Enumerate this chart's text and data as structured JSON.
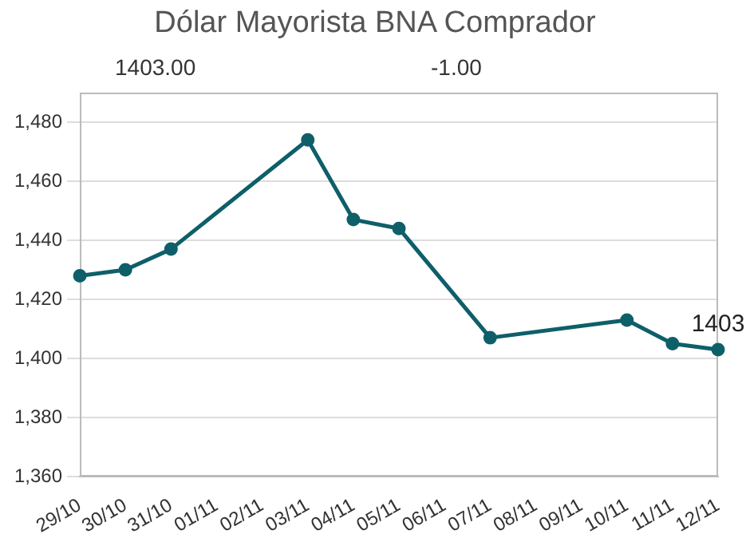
{
  "chart_data": {
    "type": "line",
    "title": "Dólar Mayorista BNA Comprador",
    "annotations": [
      "1403.00",
      "-1.00"
    ],
    "x": [
      "--10-29",
      "--10-30",
      "--10-31",
      "--11-03",
      "--11-04",
      "--11-05",
      "--11-07",
      "--11-10",
      "--11-11",
      "--11-12"
    ],
    "series": [
      {
        "color": "#0e5f69",
        "values": [
          1428,
          1430,
          1437,
          1474,
          1447,
          1444,
          1407,
          1413,
          1405,
          1403
        ],
        "value_labels": [
          null,
          null,
          null,
          null,
          null,
          null,
          null,
          null,
          null,
          "1403"
        ]
      }
    ],
    "xlim": [
      "--10-29",
      "--11-12"
    ],
    "xticks": [
      {
        "value": "--10-29",
        "label": "29/10"
      },
      {
        "value": "--10-30",
        "label": "30/10"
      },
      {
        "value": "--10-31",
        "label": "31/10"
      },
      {
        "value": "--11-01",
        "label": "01/11"
      },
      {
        "value": "--11-02",
        "label": "02/11"
      },
      {
        "value": "--11-03",
        "label": "03/11"
      },
      {
        "value": "--11-04",
        "label": "04/11"
      },
      {
        "value": "--11-05",
        "label": "05/11"
      },
      {
        "value": "--11-06",
        "label": "06/11"
      },
      {
        "value": "--11-07",
        "label": "07/11"
      },
      {
        "value": "--11-08",
        "label": "08/11"
      },
      {
        "value": "--11-09",
        "label": "09/11"
      },
      {
        "value": "--11-10",
        "label": "10/11"
      },
      {
        "value": "--11-11",
        "label": "11/11"
      },
      {
        "value": "--11-12",
        "label": "12/11"
      }
    ],
    "ylim": [
      1360,
      1490
    ],
    "yticks": [
      {
        "value": 1360,
        "label": "1,360"
      },
      {
        "value": 1380,
        "label": "1,380"
      },
      {
        "value": 1400,
        "label": "1,400"
      },
      {
        "value": 1420,
        "label": "1,420"
      },
      {
        "value": 1440,
        "label": "1,440"
      },
      {
        "value": 1460,
        "label": "1,460"
      },
      {
        "value": 1480,
        "label": "1,480"
      }
    ],
    "grid": "y",
    "legend": false,
    "marker": "circle",
    "line_style": "solid"
  }
}
